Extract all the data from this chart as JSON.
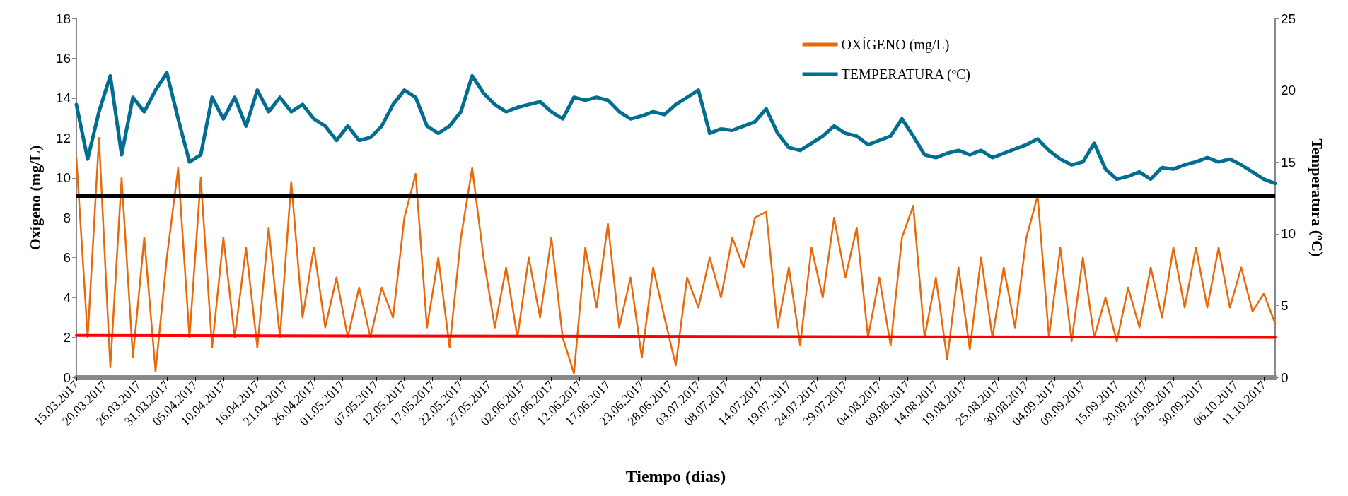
{
  "chart_data": {
    "type": "line",
    "xlabel": "Tiempo (días)",
    "ylabel": "Oxígeno (mg/L)",
    "y2label": "Temperatura (ºC)",
    "xlim": [
      "2017-03-15",
      "2017-10-13"
    ],
    "xticks": [
      {
        "value": "2017-03-15",
        "label": "15.03.2017"
      },
      {
        "value": "2017-03-20",
        "label": "20.03.2017"
      },
      {
        "value": "2017-03-26",
        "label": "26.03.2017"
      },
      {
        "value": "2017-03-31",
        "label": "31.03.2017"
      },
      {
        "value": "2017-04-05",
        "label": "05.04.2017"
      },
      {
        "value": "2017-04-10",
        "label": "10.04.2017"
      },
      {
        "value": "2017-04-16",
        "label": "16.04.2017"
      },
      {
        "value": "2017-04-21",
        "label": "21.04.2017"
      },
      {
        "value": "2017-04-26",
        "label": "26.04.2017"
      },
      {
        "value": "2017-05-01",
        "label": "01.05.2017"
      },
      {
        "value": "2017-05-07",
        "label": "07.05.2017"
      },
      {
        "value": "2017-05-12",
        "label": "12.05.2017"
      },
      {
        "value": "2017-05-17",
        "label": "17.05.2017"
      },
      {
        "value": "2017-05-22",
        "label": "22.05.2017"
      },
      {
        "value": "2017-05-27",
        "label": "27.05.2017"
      },
      {
        "value": "2017-06-02",
        "label": "02.06.2017"
      },
      {
        "value": "2017-06-07",
        "label": "07.06.2017"
      },
      {
        "value": "2017-06-12",
        "label": "12.06.2017"
      },
      {
        "value": "2017-06-17",
        "label": "17.06.2017"
      },
      {
        "value": "2017-06-23",
        "label": "23.06.2017"
      },
      {
        "value": "2017-06-28",
        "label": "28.06.2017"
      },
      {
        "value": "2017-07-03",
        "label": "03.07.2017"
      },
      {
        "value": "2017-07-08",
        "label": "08.07.2017"
      },
      {
        "value": "2017-07-14",
        "label": "14.07.2017"
      },
      {
        "value": "2017-07-19",
        "label": "19.07.2017"
      },
      {
        "value": "2017-07-24",
        "label": "24.07.2017"
      },
      {
        "value": "2017-07-29",
        "label": "29.07.2017"
      },
      {
        "value": "2017-08-04",
        "label": "04.08.2017"
      },
      {
        "value": "2017-08-09",
        "label": "09.08.2017"
      },
      {
        "value": "2017-08-14",
        "label": "14.08.2017"
      },
      {
        "value": "2017-08-19",
        "label": "19.08.2017"
      },
      {
        "value": "2017-08-25",
        "label": "25.08.2017"
      },
      {
        "value": "2017-08-30",
        "label": "30.08.2017"
      },
      {
        "value": "2017-09-04",
        "label": "04.09.2017"
      },
      {
        "value": "2017-09-09",
        "label": "09.09.2017"
      },
      {
        "value": "2017-09-15",
        "label": "15.09.2017"
      },
      {
        "value": "2017-09-20",
        "label": "20.09.2017"
      },
      {
        "value": "2017-09-25",
        "label": "25.09.2017"
      },
      {
        "value": "2017-09-30",
        "label": "30.09.2017"
      },
      {
        "value": "2017-10-06",
        "label": "06.10.2017"
      },
      {
        "value": "2017-10-11",
        "label": "11.10.2017"
      }
    ],
    "ylim": [
      0,
      18
    ],
    "yticks": [
      0,
      2,
      4,
      6,
      8,
      10,
      12,
      14,
      16,
      18
    ],
    "y2lim": [
      0,
      25
    ],
    "y2ticks": [
      0,
      5,
      10,
      15,
      20,
      25
    ],
    "grid": false,
    "legend": "top right",
    "marker": "none",
    "line_style": "solid",
    "ref_lines": [
      {
        "axis": "y",
        "value": 9.1,
        "color": "#000000"
      }
    ],
    "series": [
      {
        "name": "OXÍGENO (mg/L)",
        "color": "#e8680a",
        "x": [
          "2017-03-15",
          "2017-03-17",
          "2017-03-19",
          "2017-03-21",
          "2017-03-23",
          "2017-03-25",
          "2017-03-27",
          "2017-03-29",
          "2017-03-31",
          "2017-04-02",
          "2017-04-04",
          "2017-04-06",
          "2017-04-08",
          "2017-04-10",
          "2017-04-12",
          "2017-04-14",
          "2017-04-16",
          "2017-04-18",
          "2017-04-20",
          "2017-04-22",
          "2017-04-24",
          "2017-04-26",
          "2017-04-28",
          "2017-04-30",
          "2017-05-02",
          "2017-05-04",
          "2017-05-06",
          "2017-05-08",
          "2017-05-10",
          "2017-05-12",
          "2017-05-14",
          "2017-05-16",
          "2017-05-18",
          "2017-05-20",
          "2017-05-22",
          "2017-05-24",
          "2017-05-26",
          "2017-05-28",
          "2017-05-30",
          "2017-06-01",
          "2017-06-03",
          "2017-06-05",
          "2017-06-07",
          "2017-06-09",
          "2017-06-11",
          "2017-06-13",
          "2017-06-15",
          "2017-06-17",
          "2017-06-19",
          "2017-06-21",
          "2017-06-23",
          "2017-06-25",
          "2017-06-27",
          "2017-06-29",
          "2017-07-01",
          "2017-07-03",
          "2017-07-05",
          "2017-07-07",
          "2017-07-09",
          "2017-07-11",
          "2017-07-13",
          "2017-07-15",
          "2017-07-17",
          "2017-07-19",
          "2017-07-21",
          "2017-07-23",
          "2017-07-25",
          "2017-07-27",
          "2017-07-29",
          "2017-07-31",
          "2017-08-02",
          "2017-08-04",
          "2017-08-06",
          "2017-08-08",
          "2017-08-10",
          "2017-08-12",
          "2017-08-14",
          "2017-08-16",
          "2017-08-18",
          "2017-08-20",
          "2017-08-22",
          "2017-08-24",
          "2017-08-26",
          "2017-08-28",
          "2017-08-30",
          "2017-09-01",
          "2017-09-03",
          "2017-09-05",
          "2017-09-07",
          "2017-09-09",
          "2017-09-11",
          "2017-09-13",
          "2017-09-15",
          "2017-09-17",
          "2017-09-19",
          "2017-09-21",
          "2017-09-23",
          "2017-09-25",
          "2017-09-27",
          "2017-09-29",
          "2017-10-01",
          "2017-10-03",
          "2017-10-05",
          "2017-10-07",
          "2017-10-09",
          "2017-10-11",
          "2017-10-13"
        ],
        "values": [
          11,
          2,
          12,
          0.5,
          10,
          1,
          7,
          0.3,
          6,
          10.5,
          2,
          10,
          1.5,
          7,
          2,
          6.5,
          1.5,
          7.5,
          2,
          9.8,
          3,
          6.5,
          2.5,
          5,
          2,
          4.5,
          2,
          4.5,
          3,
          8,
          10.2,
          2.5,
          6,
          1.5,
          7,
          10.5,
          6,
          2.5,
          5.5,
          2,
          6,
          3,
          7,
          2,
          0.2,
          6.5,
          3.5,
          7.7,
          2.5,
          5,
          1,
          5.5,
          3,
          0.6,
          5,
          3.5,
          6,
          4,
          7,
          5.5,
          8,
          8.3,
          2.5,
          5.5,
          1.6,
          6.5,
          4,
          8,
          5,
          7.5,
          2,
          5,
          1.6,
          7,
          8.6,
          2,
          5,
          0.9,
          5.5,
          1.4,
          6,
          2,
          5.5,
          2.5,
          7,
          9.1,
          2,
          6.5,
          1.8,
          6,
          2,
          4,
          1.8,
          4.5,
          2.5,
          5.5,
          3,
          6.5,
          3.5,
          6.5,
          3.5,
          6.5,
          3.5,
          5.5,
          3.3,
          4.2,
          2.7
        ]
      },
      {
        "name": "TEMPERATURA (ºC)",
        "color": "#006d91",
        "axis": "y2",
        "x": [
          "2017-03-15",
          "2017-03-17",
          "2017-03-19",
          "2017-03-21",
          "2017-03-23",
          "2017-03-25",
          "2017-03-27",
          "2017-03-29",
          "2017-03-31",
          "2017-04-02",
          "2017-04-04",
          "2017-04-06",
          "2017-04-08",
          "2017-04-10",
          "2017-04-12",
          "2017-04-14",
          "2017-04-16",
          "2017-04-18",
          "2017-04-20",
          "2017-04-22",
          "2017-04-24",
          "2017-04-26",
          "2017-04-28",
          "2017-04-30",
          "2017-05-02",
          "2017-05-04",
          "2017-05-06",
          "2017-05-08",
          "2017-05-10",
          "2017-05-12",
          "2017-05-14",
          "2017-05-16",
          "2017-05-18",
          "2017-05-20",
          "2017-05-22",
          "2017-05-24",
          "2017-05-26",
          "2017-05-28",
          "2017-05-30",
          "2017-06-01",
          "2017-06-03",
          "2017-06-05",
          "2017-06-07",
          "2017-06-09",
          "2017-06-11",
          "2017-06-13",
          "2017-06-15",
          "2017-06-17",
          "2017-06-19",
          "2017-06-21",
          "2017-06-23",
          "2017-06-25",
          "2017-06-27",
          "2017-06-29",
          "2017-07-01",
          "2017-07-03",
          "2017-07-05",
          "2017-07-07",
          "2017-07-09",
          "2017-07-11",
          "2017-07-13",
          "2017-07-15",
          "2017-07-17",
          "2017-07-19",
          "2017-07-21",
          "2017-07-23",
          "2017-07-25",
          "2017-07-27",
          "2017-07-29",
          "2017-07-31",
          "2017-08-02",
          "2017-08-04",
          "2017-08-06",
          "2017-08-08",
          "2017-08-10",
          "2017-08-12",
          "2017-08-14",
          "2017-08-16",
          "2017-08-18",
          "2017-08-20",
          "2017-08-22",
          "2017-08-24",
          "2017-08-26",
          "2017-08-28",
          "2017-08-30",
          "2017-09-01",
          "2017-09-03",
          "2017-09-05",
          "2017-09-07",
          "2017-09-09",
          "2017-09-11",
          "2017-09-13",
          "2017-09-15",
          "2017-09-17",
          "2017-09-19",
          "2017-09-21",
          "2017-09-23",
          "2017-09-25",
          "2017-09-27",
          "2017-09-29",
          "2017-10-01",
          "2017-10-03",
          "2017-10-05",
          "2017-10-07",
          "2017-10-09",
          "2017-10-11",
          "2017-10-13"
        ],
        "values": [
          19,
          15.2,
          18.5,
          21,
          15.5,
          19.5,
          18.5,
          20,
          21.2,
          18,
          15,
          15.5,
          19.5,
          18,
          19.5,
          17.5,
          20,
          18.5,
          19.5,
          18.5,
          19,
          18,
          17.5,
          16.5,
          17.5,
          16.5,
          16.7,
          17.5,
          19,
          20,
          19.5,
          17.5,
          17,
          17.5,
          18.5,
          21,
          19.8,
          19,
          18.5,
          18.8,
          19,
          19.2,
          18.5,
          18,
          19.5,
          19.3,
          19.5,
          19.3,
          18.5,
          18,
          18.2,
          18.5,
          18.3,
          19,
          19.5,
          20,
          17,
          17.3,
          17.2,
          17.5,
          17.8,
          18.7,
          17,
          16,
          15.8,
          16.3,
          16.8,
          17.5,
          17,
          16.8,
          16.2,
          16.5,
          16.8,
          18,
          16.8,
          15.5,
          15.3,
          15.6,
          15.8,
          15.5,
          15.8,
          15.3,
          15.6,
          15.9,
          16.2,
          16.6,
          15.8,
          15.2,
          14.8,
          15,
          16.3,
          14.5,
          13.8,
          14,
          14.3,
          13.8,
          14.6,
          14.5,
          14.8,
          15,
          15.3,
          15,
          15.2,
          14.8,
          14.3,
          13.8,
          13.5
        ]
      },
      {
        "color": "#ff0000",
        "x": [
          "2017-03-15",
          "2017-10-13"
        ],
        "values": [
          2.1,
          2.0
        ]
      }
    ]
  }
}
